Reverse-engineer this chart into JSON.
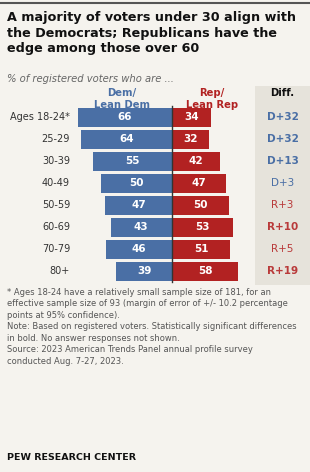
{
  "title": "A majority of voters under 30 align with\nthe Democrats; Republicans have the\nedge among those over 60",
  "subtitle": "% of registered voters who are ...",
  "col_header_dem": "Dem/\nLean Dem",
  "col_header_rep": "Rep/\nLean Rep",
  "col_header_diff": "Diff.",
  "age_groups": [
    "Ages 18-24*",
    "25-29",
    "30-39",
    "40-49",
    "50-59",
    "60-69",
    "70-79",
    "80+"
  ],
  "dem_values": [
    66,
    64,
    55,
    50,
    47,
    43,
    46,
    39
  ],
  "rep_values": [
    34,
    32,
    42,
    47,
    50,
    53,
    51,
    58
  ],
  "diff_labels": [
    "D+32",
    "D+32",
    "D+13",
    "D+3",
    "R+3",
    "R+10",
    "R+5",
    "R+19"
  ],
  "diff_bold": [
    true,
    true,
    true,
    false,
    false,
    true,
    false,
    true
  ],
  "diff_dem_color": "#4a6fa5",
  "diff_rep_color": "#b93a3a",
  "dem_color": "#4a6fa5",
  "rep_color": "#b22222",
  "footnote_parts": [
    {
      "text": "* Ages 18-24 have a relatively small sample size of 181, for an effective sample size of 93 (margin of error of +/- 10.2 percentage points at 95% confidence).\nNote: Based on registered voters. Statistically significant differences in ",
      "bold": false
    },
    {
      "text": "bold",
      "bold": true
    },
    {
      "text": ". No answer responses not shown.\nSource: 2023 American Trends Panel annual profile survey conducted Aug. 7-27, 2023.",
      "bold": false
    }
  ],
  "source_label": "PEW RESEARCH CENTER",
  "background_color": "#f5f3ee",
  "diff_bg_color": "#e6e3db",
  "bar_text_color": "#ffffff",
  "title_color": "#111111",
  "subtitle_color": "#666666",
  "footnote_color": "#555555",
  "divider_color": "#333333",
  "top_border_color": "#888888"
}
